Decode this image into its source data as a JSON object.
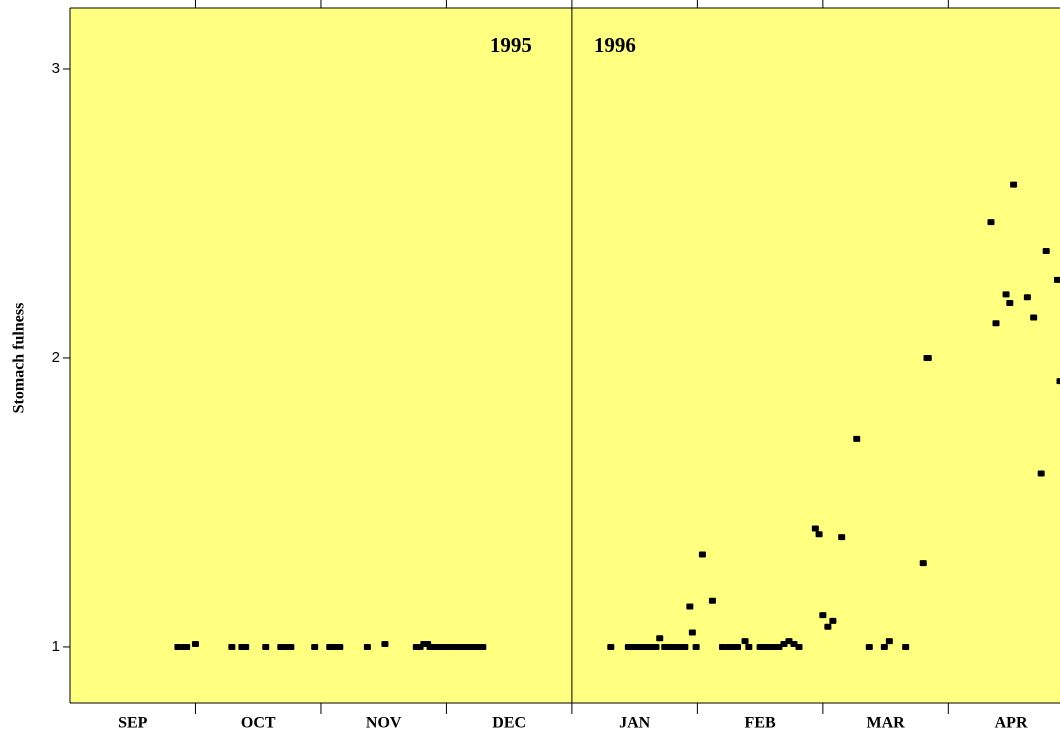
{
  "chart_data": {
    "type": "scatter",
    "y_label": "Stomach fulness",
    "categories": [
      "SEP",
      "OCT",
      "NOV",
      "DEC",
      "JAN",
      "FEB",
      "MAR",
      "APR"
    ],
    "annotations": [
      "1995",
      "1996"
    ],
    "background": "#ffff80",
    "xlim": [
      0,
      7.89
    ],
    "ylim": [
      0.806,
      3.211
    ],
    "yticks": [
      1,
      2,
      3
    ],
    "series": [
      {
        "color": "#000000",
        "x": [
          0.86,
          0.91,
          0.93,
          1.0,
          1.29,
          1.37,
          1.4,
          1.56,
          1.68,
          1.71,
          1.76,
          1.95,
          2.07,
          2.11,
          2.15,
          2.37,
          2.51,
          2.76,
          2.79,
          2.82,
          2.85,
          2.87,
          2.9,
          2.93,
          2.97,
          3.0,
          3.03,
          3.08,
          3.11,
          3.14,
          3.18,
          3.21,
          3.25,
          3.29,
          4.31,
          4.45,
          4.48,
          4.51,
          4.55,
          4.58,
          4.61,
          4.64,
          4.67,
          4.7,
          4.74,
          4.77,
          4.8,
          4.83,
          4.86,
          4.9,
          4.94,
          4.96,
          4.99,
          5.04,
          5.12,
          5.2,
          5.25,
          5.29,
          5.32,
          5.38,
          5.41,
          5.5,
          5.54,
          5.58,
          5.61,
          5.65,
          5.69,
          5.73,
          5.77,
          5.81,
          5.94,
          5.97,
          6.0,
          6.04,
          6.08,
          6.15,
          6.27,
          6.37,
          6.49,
          6.53,
          6.66,
          6.8,
          6.83,
          6.84,
          7.34,
          7.38,
          7.46,
          7.49,
          7.52,
          7.63,
          7.68,
          7.74,
          7.78,
          7.87,
          7.89
        ],
        "values": [
          1,
          1,
          1,
          1.01,
          1,
          1,
          1,
          1,
          1,
          1,
          1,
          1,
          1,
          1,
          1,
          1,
          1.01,
          1,
          1,
          1.01,
          1.01,
          1,
          1,
          1,
          1,
          1,
          1,
          1,
          1,
          1,
          1,
          1,
          1,
          1,
          1,
          1,
          1,
          1,
          1,
          1,
          1,
          1,
          1,
          1.03,
          1,
          1,
          1,
          1,
          1,
          1,
          1.14,
          1.05,
          1,
          1.32,
          1.16,
          1,
          1,
          1,
          1,
          1.02,
          1,
          1,
          1,
          1,
          1,
          1,
          1.01,
          1.02,
          1.01,
          1,
          1.41,
          1.39,
          1.11,
          1.07,
          1.09,
          1.38,
          1.72,
          1,
          1,
          1.02,
          1,
          1.29,
          2.0,
          2.0,
          2.47,
          2.12,
          2.22,
          2.19,
          2.6,
          2.21,
          2.14,
          1.6,
          2.37,
          2.27,
          1.92
        ]
      }
    ]
  }
}
